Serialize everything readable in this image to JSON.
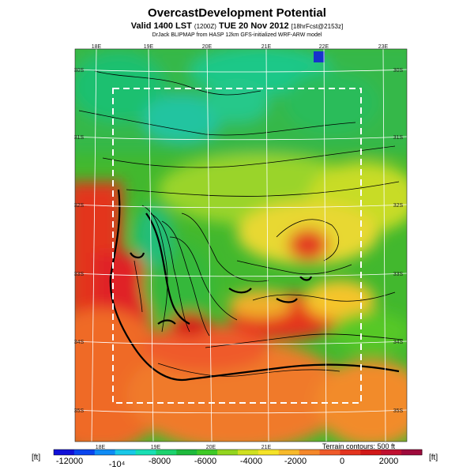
{
  "header": {
    "title": "OvercastDevelopment Potential",
    "subtitle_main": "Valid 1400 LST",
    "subtitle_code": "(1200Z)",
    "subtitle_date": "TUE 20 Nov 2012",
    "subtitle_tag": "[18hrFcst@2153z]",
    "credit": "DrJack BLIPMAP from HASP 12km GFS-initialized WRF-ARW model"
  },
  "map": {
    "lon_labels": [
      "18E",
      "19E",
      "20E",
      "21E",
      "22E",
      "23E"
    ],
    "lat_labels": [
      "30S",
      "31S",
      "32S",
      "33S",
      "34S",
      "35S"
    ],
    "terrain_note": "Terrain contours: 500 ft"
  },
  "colorbar": {
    "unit": "[ft]",
    "tick_labels": [
      "-12000",
      "-10⁴",
      "-8000",
      "-6000",
      "-4000",
      "-2000",
      "0",
      "2000"
    ],
    "colors": [
      "#1010d8",
      "#0a45ee",
      "#0f8cf5",
      "#19c8e8",
      "#19dfb4",
      "#1cd26e",
      "#1eb93c",
      "#3ec926",
      "#93d51f",
      "#cfe021",
      "#f5e328",
      "#f7b92a",
      "#f5882a",
      "#ef5a2a",
      "#e3341f",
      "#d11818",
      "#c01030",
      "#9e0a3c"
    ]
  }
}
